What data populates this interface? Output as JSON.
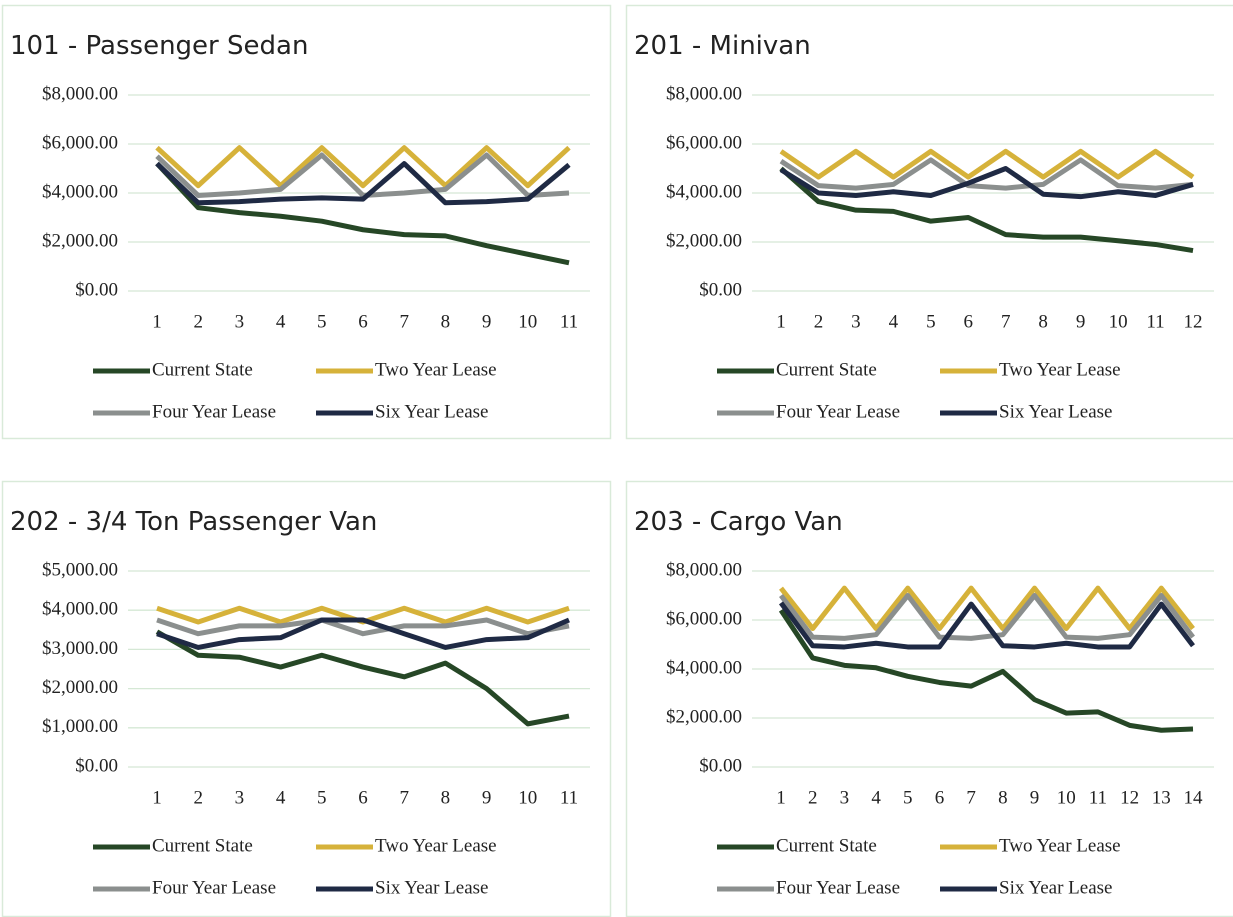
{
  "chart_data": [
    {
      "type": "line",
      "title": "101 - Passenger Sedan",
      "categories": [
        "1",
        "2",
        "3",
        "4",
        "5",
        "6",
        "7",
        "8",
        "9",
        "10",
        "11"
      ],
      "ylim": [
        0,
        8000
      ],
      "yticks": [
        {
          "value": 0,
          "label": "$0.00"
        },
        {
          "value": 2000,
          "label": "$2,000.00"
        },
        {
          "value": 4000,
          "label": "$4,000.00"
        },
        {
          "value": 6000,
          "label": "$6,000.00"
        },
        {
          "value": 8000,
          "label": "$8,000.00"
        }
      ],
      "grid": true,
      "legend": "bottom",
      "series": [
        {
          "name": "Current State",
          "color": "#264726",
          "values": [
            5200,
            3400,
            3200,
            3050,
            2850,
            2500,
            2300,
            2250,
            1850,
            1500,
            1150
          ]
        },
        {
          "name": "Two Year Lease",
          "color": "#d6b23a",
          "values": [
            5850,
            4300,
            5850,
            4300,
            5850,
            4300,
            5850,
            4300,
            5850,
            4300,
            5850
          ]
        },
        {
          "name": "Four Year Lease",
          "color": "#8b8f8e",
          "values": [
            5500,
            3900,
            4000,
            4150,
            5550,
            3900,
            4000,
            4150,
            5550,
            3900,
            4000
          ]
        },
        {
          "name": "Six Year Lease",
          "color": "#1f2a44",
          "values": [
            5200,
            3600,
            3650,
            3750,
            3800,
            3750,
            5200,
            3600,
            3650,
            3750,
            5150
          ]
        }
      ]
    },
    {
      "type": "line",
      "title": "201 - Minivan",
      "categories": [
        "1",
        "2",
        "3",
        "4",
        "5",
        "6",
        "7",
        "8",
        "9",
        "10",
        "11",
        "12"
      ],
      "ylim": [
        0,
        8000
      ],
      "yticks": [
        {
          "value": 0,
          "label": "$0.00"
        },
        {
          "value": 2000,
          "label": "$2,000.00"
        },
        {
          "value": 4000,
          "label": "$4,000.00"
        },
        {
          "value": 6000,
          "label": "$6,000.00"
        },
        {
          "value": 8000,
          "label": "$8,000.00"
        }
      ],
      "grid": true,
      "legend": "bottom",
      "series": [
        {
          "name": "Current State",
          "color": "#264726",
          "values": [
            5000,
            3650,
            3300,
            3250,
            2850,
            3000,
            2300,
            2200,
            2200,
            2050,
            1900,
            1650
          ]
        },
        {
          "name": "Two Year Lease",
          "color": "#d6b23a",
          "values": [
            5700,
            4650,
            5700,
            4650,
            5700,
            4650,
            5700,
            4650,
            5700,
            4650,
            5700,
            4650
          ]
        },
        {
          "name": "Four Year Lease",
          "color": "#8b8f8e",
          "values": [
            5300,
            4300,
            4200,
            4350,
            5350,
            4300,
            4200,
            4350,
            5350,
            4300,
            4200,
            4350
          ]
        },
        {
          "name": "Six Year Lease",
          "color": "#1f2a44",
          "values": [
            4950,
            4000,
            3900,
            4050,
            3900,
            4400,
            5000,
            3950,
            3850,
            4050,
            3900,
            4350
          ]
        }
      ]
    },
    {
      "type": "line",
      "title": "202 - 3/4 Ton Passenger Van",
      "categories": [
        "1",
        "2",
        "3",
        "4",
        "5",
        "6",
        "7",
        "8",
        "9",
        "10",
        "11"
      ],
      "ylim": [
        0,
        5000
      ],
      "yticks": [
        {
          "value": 0,
          "label": "$0.00"
        },
        {
          "value": 1000,
          "label": "$1,000.00"
        },
        {
          "value": 2000,
          "label": "$2,000.00"
        },
        {
          "value": 3000,
          "label": "$3,000.00"
        },
        {
          "value": 4000,
          "label": "$4,000.00"
        },
        {
          "value": 5000,
          "label": "$5,000.00"
        }
      ],
      "grid": true,
      "legend": "bottom",
      "series": [
        {
          "name": "Current State",
          "color": "#264726",
          "values": [
            3450,
            2850,
            2800,
            2550,
            2850,
            2550,
            2300,
            2650,
            2000,
            1100,
            1300
          ]
        },
        {
          "name": "Two Year Lease",
          "color": "#d6b23a",
          "values": [
            4050,
            3700,
            4050,
            3700,
            4050,
            3700,
            4050,
            3700,
            4050,
            3700,
            4050
          ]
        },
        {
          "name": "Four Year Lease",
          "color": "#8b8f8e",
          "values": [
            3750,
            3400,
            3600,
            3600,
            3750,
            3400,
            3600,
            3600,
            3750,
            3400,
            3600
          ]
        },
        {
          "name": "Six Year Lease",
          "color": "#1f2a44",
          "values": [
            3400,
            3050,
            3250,
            3300,
            3750,
            3750,
            3400,
            3050,
            3250,
            3300,
            3750
          ]
        }
      ]
    },
    {
      "type": "line",
      "title": "203 - Cargo Van",
      "categories": [
        "1",
        "2",
        "3",
        "4",
        "5",
        "6",
        "7",
        "8",
        "9",
        "10",
        "11",
        "12",
        "13",
        "14"
      ],
      "ylim": [
        0,
        8000
      ],
      "yticks": [
        {
          "value": 0,
          "label": "$0.00"
        },
        {
          "value": 2000,
          "label": "$2,000.00"
        },
        {
          "value": 4000,
          "label": "$4,000.00"
        },
        {
          "value": 6000,
          "label": "$6,000.00"
        },
        {
          "value": 8000,
          "label": "$8,000.00"
        }
      ],
      "grid": true,
      "legend": "bottom",
      "series": [
        {
          "name": "Current State",
          "color": "#264726",
          "values": [
            6400,
            4450,
            4150,
            4050,
            3700,
            3450,
            3300,
            3900,
            2750,
            2200,
            2250,
            1700,
            1500,
            1550
          ]
        },
        {
          "name": "Two Year Lease",
          "color": "#d6b23a",
          "values": [
            7300,
            5650,
            7300,
            5650,
            7300,
            5650,
            7300,
            5650,
            7300,
            5650,
            7300,
            5650,
            7300,
            5650
          ]
        },
        {
          "name": "Four Year Lease",
          "color": "#8b8f8e",
          "values": [
            7000,
            5300,
            5250,
            5400,
            7000,
            5300,
            5250,
            5400,
            7000,
            5300,
            5250,
            5400,
            7000,
            5300
          ]
        },
        {
          "name": "Six Year Lease",
          "color": "#1f2a44",
          "values": [
            6700,
            4950,
            4900,
            5050,
            4900,
            4900,
            6650,
            4950,
            4900,
            5050,
            4900,
            4900,
            6650,
            4950
          ]
        }
      ]
    }
  ]
}
